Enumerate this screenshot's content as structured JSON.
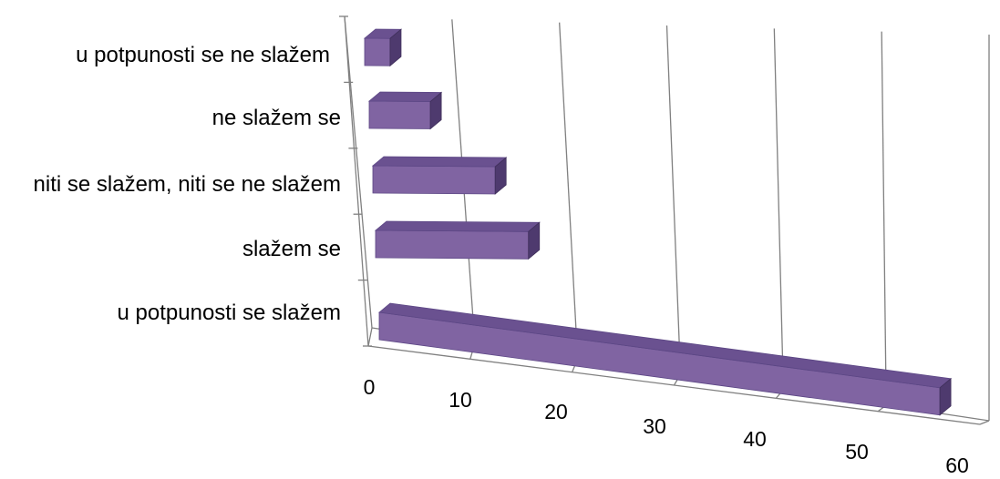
{
  "chart_data": {
    "type": "bar",
    "orientation": "horizontal",
    "style": "3d",
    "categories": [
      "u potpunosti se ne slažem",
      "ne slažem se",
      "niti se slažem, niti se ne slažem",
      "slažem se",
      "u potpunosti se slažem"
    ],
    "values": [
      2.5,
      6,
      12,
      15,
      55
    ],
    "xlim": [
      0,
      60
    ],
    "x_ticks": [
      "0",
      "10",
      "20",
      "30",
      "40",
      "50",
      "60"
    ],
    "grid": true,
    "legend": "none",
    "colors": {
      "bar_front": "#8064A2",
      "bar_top": "#6A5190",
      "bar_side": "#4E3A6E",
      "grid": "#808080"
    }
  }
}
